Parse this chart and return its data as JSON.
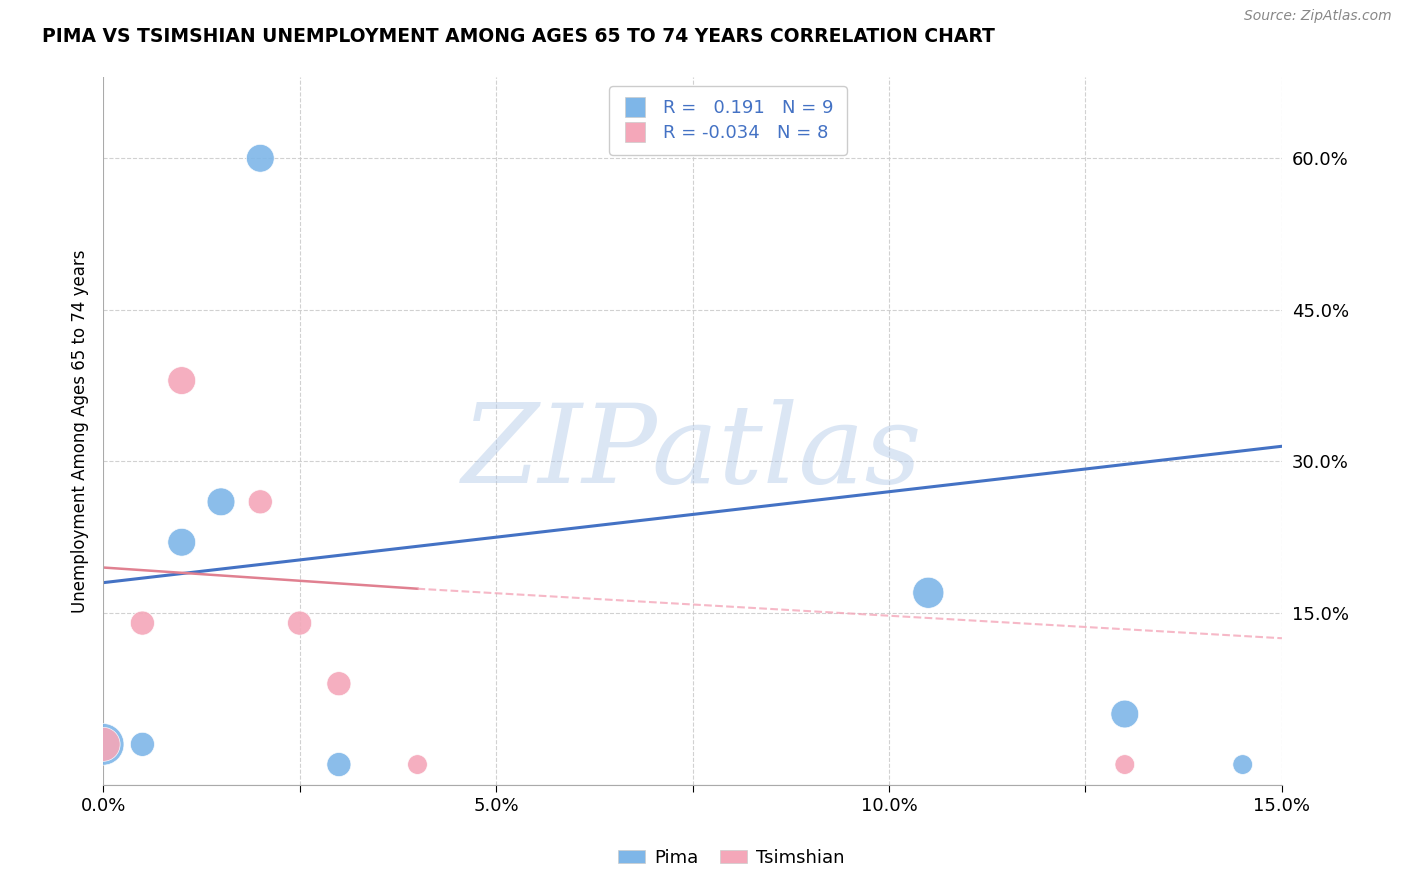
{
  "title": "PIMA VS TSIMSHIAN UNEMPLOYMENT AMONG AGES 65 TO 74 YEARS CORRELATION CHART",
  "source": "Source: ZipAtlas.com",
  "ylabel": "Unemployment Among Ages 65 to 74 years",
  "xlim": [
    0.0,
    0.15
  ],
  "ylim": [
    -0.02,
    0.68
  ],
  "xticks": [
    0.0,
    0.025,
    0.05,
    0.075,
    0.1,
    0.125,
    0.15
  ],
  "xticklabels": [
    "0.0%",
    "",
    "5.0%",
    "",
    "10.0%",
    "",
    "15.0%"
  ],
  "yticks_right": [
    0.15,
    0.3,
    0.45,
    0.6
  ],
  "ytick_right_labels": [
    "15.0%",
    "30.0%",
    "45.0%",
    "60.0%"
  ],
  "pima_color": "#7EB6E8",
  "tsimshian_color": "#F4A7B9",
  "pima_line_color": "#4472C4",
  "tsimshian_line_color": "#F4A7B9",
  "tsimshian_line_solid_color": "#E08090",
  "legend_text_color": "#4472C4",
  "pima_R": 0.191,
  "pima_N": 9,
  "tsimshian_R": -0.034,
  "tsimshian_N": 8,
  "pima_x": [
    0.0,
    0.005,
    0.01,
    0.015,
    0.02,
    0.03,
    0.105,
    0.13,
    0.145
  ],
  "pima_y": [
    0.02,
    0.02,
    0.22,
    0.26,
    0.6,
    0.0,
    0.17,
    0.05,
    0.0
  ],
  "pima_size": [
    900,
    300,
    400,
    400,
    400,
    300,
    500,
    400,
    200
  ],
  "tsimshian_x": [
    0.0,
    0.005,
    0.01,
    0.02,
    0.025,
    0.03,
    0.04,
    0.13
  ],
  "tsimshian_y": [
    0.02,
    0.14,
    0.38,
    0.26,
    0.14,
    0.08,
    0.0,
    0.0
  ],
  "tsimshian_size": [
    600,
    300,
    400,
    300,
    300,
    300,
    200,
    200
  ],
  "watermark": "ZIPatlas",
  "background_color": "#FFFFFF",
  "grid_color": "#CCCCCC"
}
